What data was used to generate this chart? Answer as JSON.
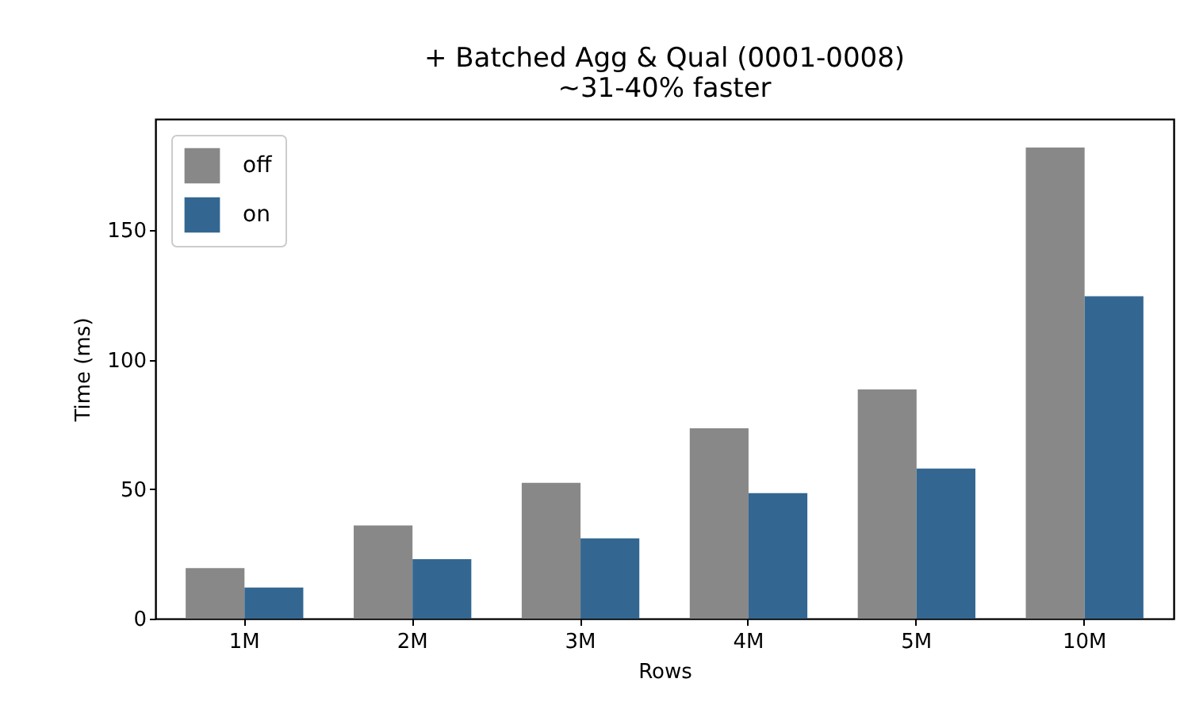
{
  "chart_data": {
    "type": "bar",
    "title": "+ Batched Agg & Qual (0001-0008)",
    "subtitle": "~31-40% faster",
    "xlabel": "Rows",
    "ylabel": "Time (ms)",
    "categories": [
      "1M",
      "2M",
      "3M",
      "4M",
      "5M",
      "10M"
    ],
    "series": [
      {
        "name": "off",
        "color": "#888888",
        "values": [
          19.5,
          36,
          52.5,
          73.5,
          88.5,
          182
        ]
      },
      {
        "name": "on",
        "color": "#336791",
        "values": [
          12,
          23,
          31,
          48.5,
          58,
          124.5
        ]
      }
    ],
    "ylim": [
      0,
      193
    ],
    "yticks": [
      0,
      50,
      100,
      150
    ],
    "grid": false,
    "legend": "top left"
  }
}
